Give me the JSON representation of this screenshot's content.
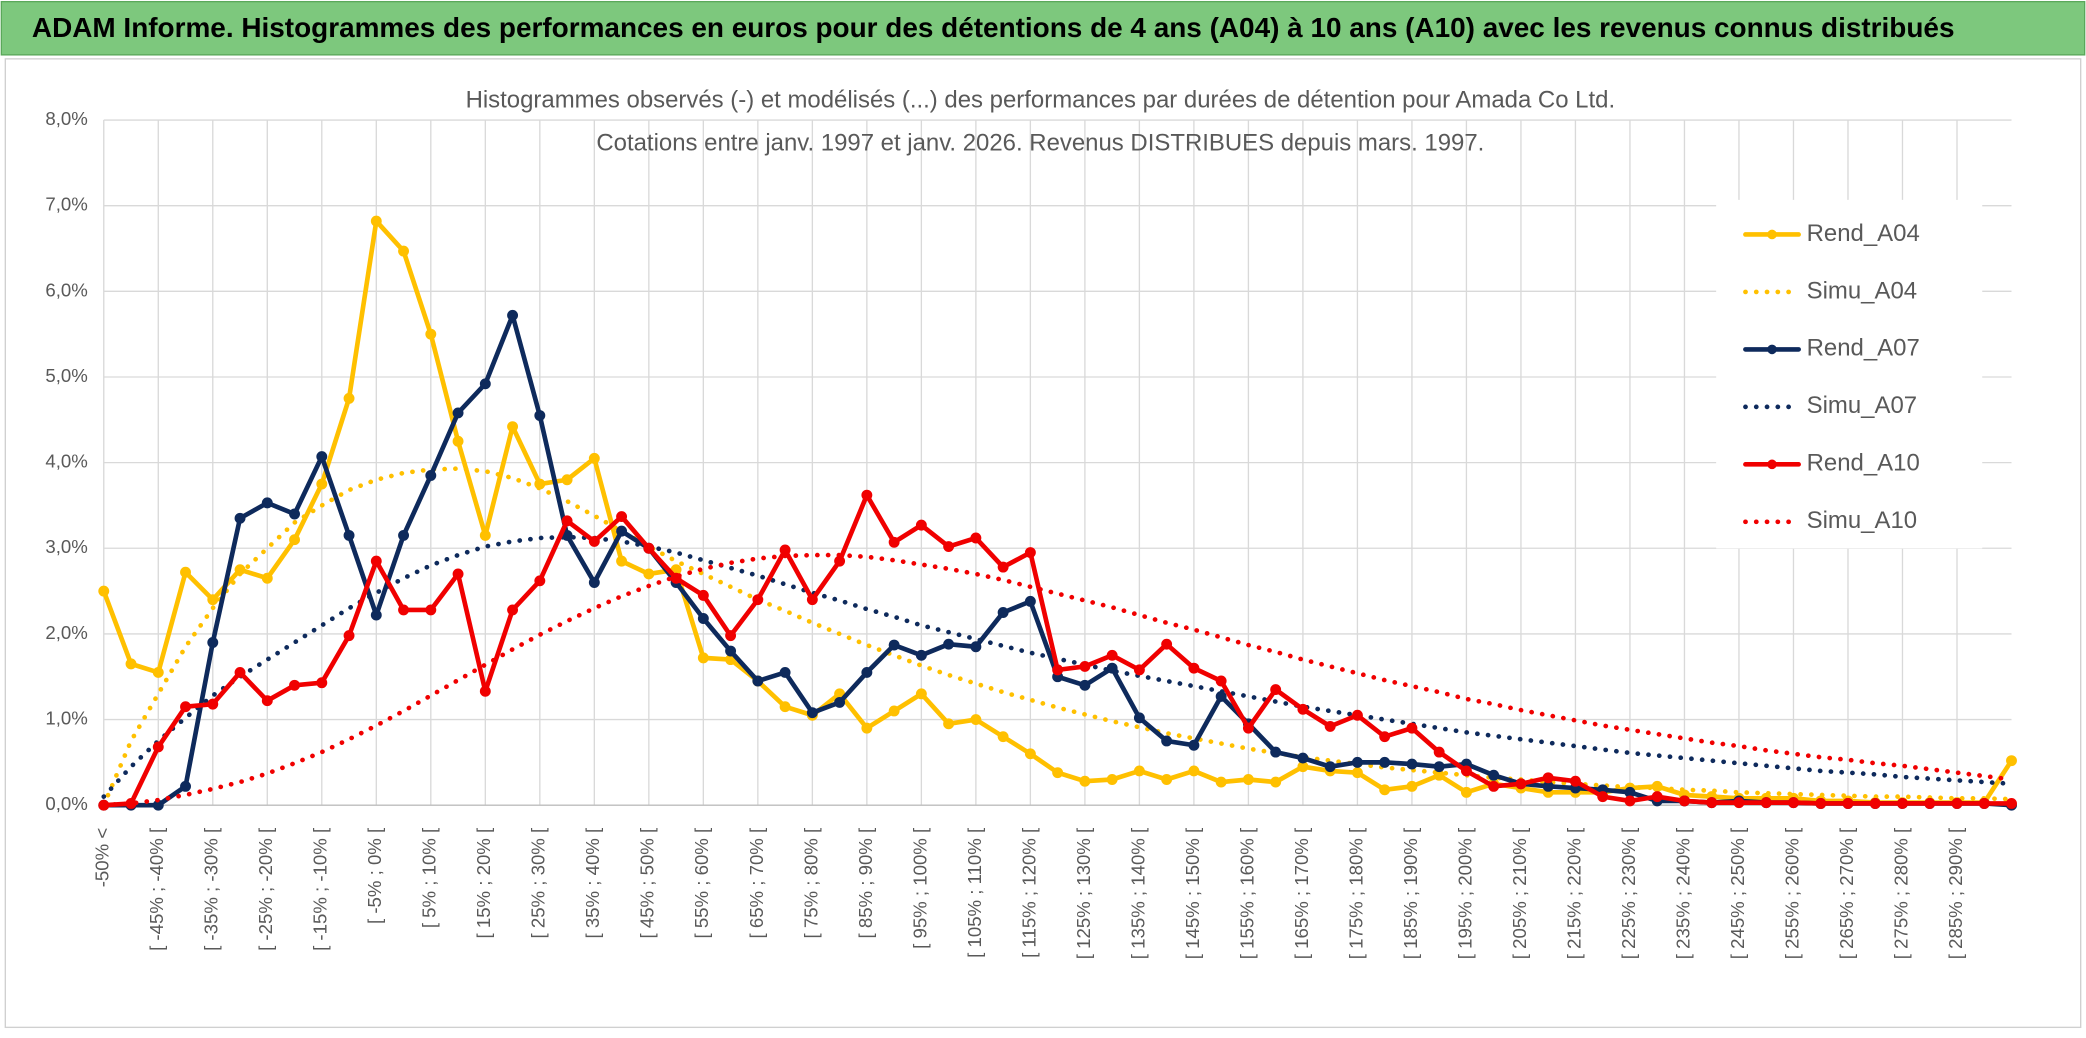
{
  "header": {
    "title": "ADAM Informe. Histogrammes des performances en euros pour des détentions de 4 ans (A04) à 10 ans (A10) avec les revenus connus distribués"
  },
  "chart_data": {
    "type": "line",
    "title": "Histogrammes observés (-) et modélisés (...) des performances par durées de détention pour Amada Co Ltd.",
    "subtitle": "Cotations entre janv. 1997 et janv. 2026. Revenus DISTRIBUES depuis mars. 1997.",
    "categories": [
      "-50% <",
      null,
      "[ -45% ; -40% [",
      null,
      "[ -35% ; -30% [",
      null,
      "[ -25% ; -20% [",
      null,
      "[ -15% ; -10% [",
      null,
      "[ -5% ; 0% [",
      null,
      "[ 5% ; 10% [",
      null,
      "[ 15% ; 20% [",
      null,
      "[ 25% ; 30% [",
      null,
      "[ 35% ; 40% [",
      null,
      "[ 45% ; 50% [",
      null,
      "[ 55% ; 60% [",
      null,
      "[ 65% ; 70% [",
      null,
      "[ 75% ; 80% [",
      null,
      "[ 85% ; 90% [",
      null,
      "[ 95% ; 100% [",
      null,
      "[ 105% ; 110% [",
      null,
      "[ 115% ; 120% [",
      null,
      "[ 125% ; 130% [",
      null,
      "[ 135% ; 140% [",
      null,
      "[ 145% ; 150% [",
      null,
      "[ 155% ; 160% [",
      null,
      "[ 165% ; 170% [",
      null,
      "[ 175% ; 180% [",
      null,
      "[ 185% ; 190% [",
      null,
      "[ 195% ; 200% [",
      null,
      "[ 205% ; 210% [",
      null,
      "[ 215% ; 220% [",
      null,
      "[ 225% ; 230% [",
      null,
      "[ 235% ; 240% [",
      null,
      "[ 245% ; 250% [",
      null,
      "[ 255% ; 260% [",
      null,
      "[ 265% ; 270% [",
      null,
      "[ 275% ; 280% [",
      null,
      "[ 285% ; 290% [",
      null,
      null
    ],
    "ylim": [
      0,
      8
    ],
    "yticks": [
      {
        "value": 0,
        "label": "0,0%"
      },
      {
        "value": 1,
        "label": "1,0%"
      },
      {
        "value": 2,
        "label": "2,0%"
      },
      {
        "value": 3,
        "label": "3,0%"
      },
      {
        "value": 4,
        "label": "4,0%"
      },
      {
        "value": 5,
        "label": "5,0%"
      },
      {
        "value": 6,
        "label": "6,0%"
      },
      {
        "value": 7,
        "label": "7,0%"
      },
      {
        "value": 8,
        "label": "8,0%"
      }
    ],
    "grid": true,
    "legend": "right",
    "series": [
      {
        "name": "Rend_A04",
        "color": "#FFC000",
        "line_style": "solid",
        "values": [
          2.5,
          1.65,
          1.55,
          2.72,
          2.4,
          2.75,
          2.65,
          3.1,
          3.75,
          4.75,
          6.82,
          6.47,
          5.5,
          4.25,
          3.15,
          4.42,
          3.75,
          3.8,
          4.05,
          2.85,
          2.7,
          2.75,
          1.72,
          1.7,
          1.45,
          1.15,
          1.05,
          1.3,
          0.9,
          1.1,
          1.3,
          0.95,
          1.0,
          0.8,
          0.6,
          0.38,
          0.28,
          0.3,
          0.4,
          0.3,
          0.4,
          0.27,
          0.3,
          0.27,
          0.45,
          0.4,
          0.38,
          0.18,
          0.22,
          0.35,
          0.15,
          0.25,
          0.2,
          0.15,
          0.15,
          0.15,
          0.2,
          0.22,
          0.12,
          0.1,
          0.08,
          0.08,
          0.08,
          0.05,
          0.05,
          0.03,
          0.03,
          0.03,
          0.03,
          0.03,
          0.52
        ]
      },
      {
        "name": "Simu_A04",
        "color": "#FFC000",
        "line_style": "dotted",
        "values": [
          0,
          0.75,
          1.3,
          1.85,
          2.3,
          2.7,
          3.0,
          3.3,
          3.5,
          3.68,
          3.8,
          3.88,
          3.92,
          3.93,
          3.9,
          3.82,
          3.7,
          3.55,
          3.38,
          3.2,
          3.02,
          2.85,
          2.7,
          2.55,
          2.4,
          2.27,
          2.13,
          2.0,
          1.87,
          1.75,
          1.63,
          1.52,
          1.42,
          1.32,
          1.23,
          1.14,
          1.06,
          0.98,
          0.91,
          0.84,
          0.78,
          0.72,
          0.66,
          0.61,
          0.56,
          0.52,
          0.48,
          0.44,
          0.41,
          0.38,
          0.35,
          0.32,
          0.3,
          0.27,
          0.25,
          0.23,
          0.21,
          0.2,
          0.18,
          0.17,
          0.15,
          0.14,
          0.13,
          0.12,
          0.11,
          0.1,
          0.1,
          0.09,
          0.08,
          0.08,
          0.07
        ]
      },
      {
        "name": "Rend_A07",
        "color": "#0E2A5C",
        "line_style": "solid",
        "values": [
          0,
          0,
          0,
          0.22,
          1.9,
          3.35,
          3.53,
          3.4,
          4.07,
          3.15,
          2.22,
          3.15,
          3.85,
          4.58,
          4.92,
          5.72,
          4.55,
          3.15,
          2.6,
          3.2,
          3.0,
          2.6,
          2.18,
          1.8,
          1.45,
          1.55,
          1.08,
          1.2,
          1.55,
          1.87,
          1.75,
          1.88,
          1.85,
          2.25,
          2.38,
          1.5,
          1.4,
          1.6,
          1.02,
          0.75,
          0.7,
          1.27,
          0.95,
          0.62,
          0.55,
          0.45,
          0.5,
          0.5,
          0.48,
          0.45,
          0.48,
          0.35,
          0.25,
          0.22,
          0.2,
          0.18,
          0.15,
          0.05,
          0.05,
          0.03,
          0.05,
          0.03,
          0.03,
          0.02,
          0.02,
          0.02,
          0.02,
          0.02,
          0.02,
          0.02,
          0
        ]
      },
      {
        "name": "Simu_A07",
        "color": "#0E2A5C",
        "line_style": "dotted",
        "values": [
          0.1,
          0.45,
          0.75,
          1.02,
          1.28,
          1.5,
          1.7,
          1.9,
          2.1,
          2.3,
          2.48,
          2.65,
          2.8,
          2.92,
          3.02,
          3.08,
          3.12,
          3.13,
          3.12,
          3.08,
          3.02,
          2.95,
          2.86,
          2.77,
          2.68,
          2.58,
          2.48,
          2.39,
          2.29,
          2.2,
          2.1,
          2.02,
          1.94,
          1.86,
          1.78,
          1.71,
          1.64,
          1.57,
          1.51,
          1.45,
          1.39,
          1.33,
          1.27,
          1.21,
          1.15,
          1.1,
          1.05,
          1.0,
          0.95,
          0.9,
          0.85,
          0.81,
          0.77,
          0.73,
          0.69,
          0.65,
          0.61,
          0.58,
          0.55,
          0.52,
          0.49,
          0.46,
          0.43,
          0.4,
          0.38,
          0.36,
          0.33,
          0.31,
          0.29,
          0.27,
          0.25
        ]
      },
      {
        "name": "Rend_A10",
        "color": "#F00000",
        "line_style": "solid",
        "values": [
          0,
          0.02,
          0.68,
          1.15,
          1.18,
          1.55,
          1.22,
          1.4,
          1.43,
          1.98,
          2.85,
          2.28,
          2.28,
          2.7,
          1.33,
          2.28,
          2.62,
          3.32,
          3.08,
          3.37,
          3.0,
          2.65,
          2.45,
          1.98,
          2.4,
          2.98,
          2.4,
          2.85,
          3.62,
          3.07,
          3.27,
          3.02,
          3.12,
          2.78,
          2.95,
          1.58,
          1.62,
          1.75,
          1.58,
          1.88,
          1.6,
          1.45,
          0.9,
          1.35,
          1.12,
          0.92,
          1.05,
          0.8,
          0.9,
          0.62,
          0.4,
          0.22,
          0.25,
          0.32,
          0.28,
          0.1,
          0.05,
          0.1,
          0.05,
          0.03,
          0.03,
          0.03,
          0.03,
          0.02,
          0.02,
          0.02,
          0.02,
          0.02,
          0.02,
          0.02,
          0.02
        ]
      },
      {
        "name": "Simu_A10",
        "color": "#F00000",
        "line_style": "dotted",
        "values": [
          0,
          0.02,
          0.06,
          0.12,
          0.19,
          0.27,
          0.37,
          0.49,
          0.62,
          0.77,
          0.93,
          1.1,
          1.28,
          1.46,
          1.64,
          1.82,
          1.99,
          2.15,
          2.3,
          2.44,
          2.56,
          2.67,
          2.76,
          2.83,
          2.88,
          2.91,
          2.92,
          2.92,
          2.9,
          2.86,
          2.81,
          2.76,
          2.7,
          2.63,
          2.55,
          2.47,
          2.39,
          2.31,
          2.22,
          2.13,
          2.05,
          1.96,
          1.87,
          1.79,
          1.7,
          1.62,
          1.54,
          1.46,
          1.39,
          1.32,
          1.24,
          1.18,
          1.11,
          1.05,
          0.99,
          0.93,
          0.88,
          0.83,
          0.78,
          0.73,
          0.69,
          0.64,
          0.6,
          0.56,
          0.53,
          0.49,
          0.46,
          0.42,
          0.38,
          0.34,
          0.3
        ]
      }
    ]
  }
}
